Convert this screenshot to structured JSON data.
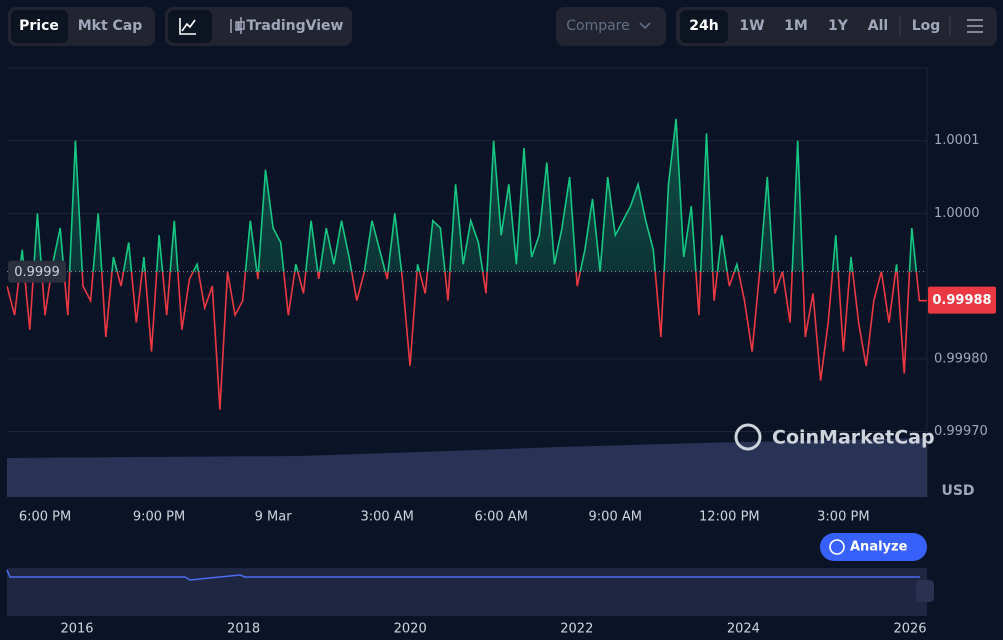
{
  "toolbar": {
    "price": "Price",
    "mkt_cap": "Mkt Cap",
    "tradingview": "TradingView",
    "compare": "Compare",
    "ranges": [
      "24h",
      "1W",
      "1M",
      "1Y",
      "All"
    ],
    "log": "Log"
  },
  "watermark": "CoinMarketCap",
  "analyze": "Analyze",
  "currency": "USD",
  "navigator_years": [
    "2016",
    "2018",
    "2020",
    "2022",
    "2024",
    "2026"
  ],
  "chart_data": {
    "type": "line",
    "color_up": "#16c784",
    "color_down": "#ea3943",
    "baseline": {
      "value": 0.99992,
      "label": "0.9999"
    },
    "current": 0.99988,
    "xlim": [
      17,
      41.2
    ],
    "xticks": [
      {
        "value": 18,
        "label": "6:00 PM"
      },
      {
        "value": 21,
        "label": "9:00 PM"
      },
      {
        "value": 24,
        "label": "9 Mar"
      },
      {
        "value": 27,
        "label": "3:00 AM"
      },
      {
        "value": 30,
        "label": "6:00 AM"
      },
      {
        "value": 33,
        "label": "9:00 AM"
      },
      {
        "value": 36,
        "label": "12:00 PM"
      },
      {
        "value": 39,
        "label": "3:00 PM"
      }
    ],
    "ylim": [
      0.99961,
      1.0002
    ],
    "yticks": [
      1.0001,
      {
        "value": 1,
        "label": "1.0000"
      },
      {
        "value": 0.9998,
        "label": "0.99980"
      },
      {
        "value": 0.9997,
        "label": "0.99970"
      }
    ],
    "grid": true,
    "x": [
      17,
      17.2,
      17.4,
      17.6,
      17.8,
      18,
      18.2,
      18.4,
      18.6,
      18.8,
      19,
      19.2,
      19.4,
      19.6,
      19.8,
      20,
      20.2,
      20.4,
      20.6,
      20.8,
      21,
      21.2,
      21.4,
      21.6,
      21.8,
      22,
      22.2,
      22.4,
      22.6,
      22.8,
      23,
      23.2,
      23.4,
      23.6,
      23.8,
      24,
      24.2,
      24.4,
      24.6,
      24.8,
      25,
      25.2,
      25.4,
      25.6,
      25.8,
      26,
      26.2,
      26.4,
      26.6,
      26.8,
      27,
      27.2,
      27.4,
      27.6,
      27.8,
      28,
      28.2,
      28.4,
      28.6,
      28.8,
      29,
      29.2,
      29.4,
      29.6,
      29.8,
      30,
      30.2,
      30.4,
      30.6,
      30.8,
      31,
      31.2,
      31.4,
      31.6,
      31.8,
      32,
      32.2,
      32.4,
      32.6,
      32.8,
      33,
      33.2,
      33.4,
      33.6,
      33.8,
      34,
      34.2,
      34.4,
      34.6,
      34.8,
      35,
      35.2,
      35.4,
      35.6,
      35.8,
      36,
      36.2,
      36.4,
      36.6,
      36.8,
      37,
      37.2,
      37.4,
      37.6,
      37.8,
      38,
      38.2,
      38.4,
      38.6,
      38.8,
      39,
      39.2,
      39.4,
      39.6,
      39.8,
      40,
      40.2,
      40.4,
      40.6,
      40.8,
      41,
      41.2
    ],
    "values": [
      0.9999,
      0.99986,
      0.99995,
      0.99984,
      1,
      0.99986,
      0.99993,
      0.99998,
      0.99986,
      1.0001,
      0.9999,
      0.99988,
      1,
      0.99983,
      0.99994,
      0.9999,
      0.99996,
      0.99985,
      0.99994,
      0.99981,
      0.99997,
      0.99986,
      0.99999,
      0.99984,
      0.99991,
      0.99993,
      0.99987,
      0.9999,
      0.99973,
      0.99992,
      0.99986,
      0.99988,
      0.99999,
      0.99991,
      1.00006,
      0.99998,
      0.99996,
      0.99986,
      0.99993,
      0.99989,
      0.99999,
      0.99991,
      0.99998,
      0.99993,
      0.99999,
      0.99994,
      0.99988,
      0.99992,
      0.99999,
      0.99995,
      0.99991,
      1,
      0.99991,
      0.99979,
      0.99993,
      0.99989,
      0.99999,
      0.99998,
      0.99988,
      1.00004,
      0.99993,
      0.99999,
      0.99996,
      0.99989,
      1.0001,
      0.99997,
      1.00004,
      0.99993,
      1.00009,
      0.99994,
      0.99997,
      1.00007,
      0.99993,
      0.99998,
      1.00005,
      0.9999,
      0.99995,
      1.00002,
      0.99992,
      1.00005,
      0.99997,
      0.99999,
      1.00001,
      1.00004,
      0.99999,
      0.99995,
      0.99983,
      1.00004,
      1.00013,
      0.99994,
      1.00001,
      0.99986,
      1.00011,
      0.99988,
      0.99997,
      0.9999,
      0.99993,
      0.99988,
      0.99981,
      0.99992,
      1.00005,
      0.99989,
      0.99992,
      0.99985,
      1.0001,
      0.99983,
      0.99989,
      0.99977,
      0.99985,
      0.99997,
      0.99981,
      0.99994,
      0.99985,
      0.99979,
      0.99988,
      0.99992,
      0.99985,
      0.99993,
      0.99978,
      0.99998,
      0.99988,
      0.99988
    ]
  }
}
